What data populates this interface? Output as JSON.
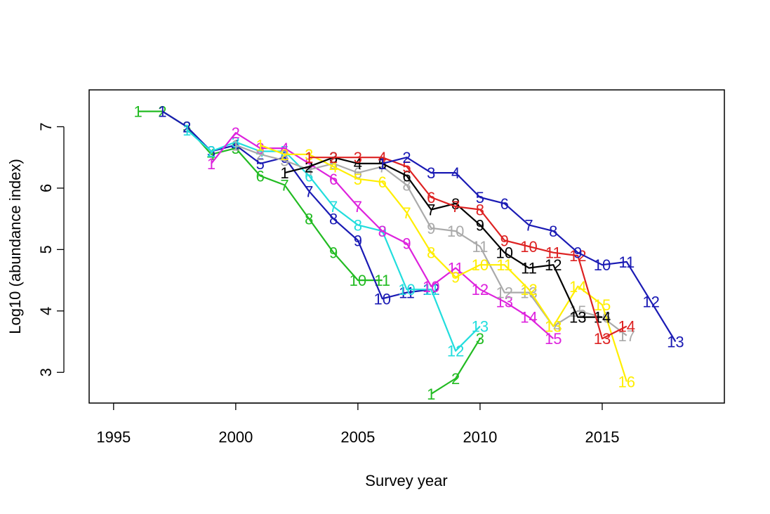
{
  "chart_data": {
    "type": "line",
    "title": "",
    "xlabel": "Survey year",
    "ylabel": "Log10 (abundance index)",
    "xlim": [
      1994,
      2020
    ],
    "ylim": [
      2.5,
      7.6
    ],
    "xticks": [
      1995,
      2000,
      2005,
      2010,
      2015
    ],
    "yticks": [
      3,
      4,
      5,
      6,
      7
    ],
    "grid": false,
    "legend": "none",
    "point_labels": "each point is drawn as its series' sequential number",
    "series": [
      {
        "color": "#22bb22",
        "points": [
          [
            1996,
            7.25
          ],
          [
            1997,
            7.25
          ],
          [
            1998,
            7.0
          ],
          [
            1999,
            6.55
          ],
          [
            2000,
            6.65
          ],
          [
            2001,
            6.2
          ],
          [
            2002,
            6.05
          ],
          [
            2003,
            5.5
          ],
          [
            2004,
            4.95
          ],
          [
            2005,
            4.5
          ],
          [
            2006,
            4.5
          ]
        ]
      },
      {
        "color": "#1a1ab4",
        "points": [
          [
            1997,
            7.25
          ],
          [
            1998,
            7.0
          ],
          [
            1999,
            6.6
          ],
          [
            2000,
            6.7
          ],
          [
            2001,
            6.4
          ],
          [
            2002,
            6.5
          ],
          [
            2003,
            5.95
          ],
          [
            2004,
            5.5
          ],
          [
            2005,
            5.15
          ],
          [
            2006,
            4.2
          ],
          [
            2007,
            4.3
          ],
          [
            2008,
            4.35
          ]
        ]
      },
      {
        "color": "#22dddd",
        "points": [
          [
            1998,
            6.95
          ],
          [
            1999,
            6.6
          ],
          [
            2000,
            6.75
          ],
          [
            2001,
            6.6
          ],
          [
            2002,
            6.6
          ],
          [
            2003,
            6.2
          ],
          [
            2004,
            5.7
          ],
          [
            2005,
            5.4
          ],
          [
            2006,
            5.3
          ],
          [
            2007,
            4.35
          ],
          [
            2008,
            4.35
          ],
          [
            2009,
            3.35
          ],
          [
            2010,
            3.75
          ]
        ]
      },
      {
        "color": "#dd22dd",
        "points": [
          [
            1999,
            6.4
          ],
          [
            2000,
            6.9
          ],
          [
            2001,
            6.65
          ],
          [
            2002,
            6.65
          ],
          [
            2003,
            6.4
          ],
          [
            2004,
            6.15
          ],
          [
            2005,
            5.7
          ],
          [
            2006,
            5.3
          ],
          [
            2007,
            5.1
          ],
          [
            2008,
            4.4
          ],
          [
            2009,
            4.7
          ],
          [
            2010,
            4.35
          ],
          [
            2011,
            4.15
          ],
          [
            2012,
            3.9
          ],
          [
            2013,
            3.55
          ]
        ]
      },
      {
        "color": "#aaaaaa",
        "points": [
          [
            2000,
            6.7
          ],
          [
            2001,
            6.55
          ],
          [
            2002,
            6.45
          ],
          [
            2003,
            6.3
          ],
          [
            2004,
            6.4
          ],
          [
            2005,
            6.25
          ],
          [
            2006,
            6.35
          ],
          [
            2007,
            6.05
          ],
          [
            2008,
            5.35
          ],
          [
            2009,
            5.3
          ],
          [
            2010,
            5.05
          ],
          [
            2011,
            4.3
          ],
          [
            2012,
            4.3
          ],
          [
            2013,
            3.75
          ],
          [
            2014,
            4.0
          ],
          [
            2015,
            3.9
          ],
          [
            2016,
            3.6
          ]
        ]
      },
      {
        "color": "#ffee00",
        "points": [
          [
            2001,
            6.7
          ],
          [
            2002,
            6.55
          ],
          [
            2003,
            6.55
          ],
          [
            2004,
            6.35
          ],
          [
            2005,
            6.15
          ],
          [
            2006,
            6.1
          ],
          [
            2007,
            5.6
          ],
          [
            2008,
            4.95
          ],
          [
            2009,
            4.55
          ],
          [
            2010,
            4.75
          ],
          [
            2011,
            4.75
          ],
          [
            2012,
            4.35
          ],
          [
            2013,
            3.75
          ],
          [
            2014,
            4.4
          ],
          [
            2015,
            4.1
          ],
          [
            2016,
            2.85
          ]
        ]
      },
      {
        "color": "#000000",
        "points": [
          [
            2002,
            6.25
          ],
          [
            2003,
            6.35
          ],
          [
            2004,
            6.5
          ],
          [
            2005,
            6.4
          ],
          [
            2006,
            6.4
          ],
          [
            2007,
            6.2
          ],
          [
            2008,
            5.65
          ],
          [
            2009,
            5.75
          ],
          [
            2010,
            5.4
          ],
          [
            2011,
            4.95
          ],
          [
            2012,
            4.7
          ],
          [
            2013,
            4.75
          ],
          [
            2014,
            3.9
          ],
          [
            2015,
            3.9
          ]
        ]
      },
      {
        "color": "#dd2222",
        "points": [
          [
            2003,
            6.5
          ],
          [
            2004,
            6.5
          ],
          [
            2005,
            6.5
          ],
          [
            2006,
            6.5
          ],
          [
            2007,
            6.35
          ],
          [
            2008,
            5.85
          ],
          [
            2009,
            5.7
          ],
          [
            2010,
            5.65
          ],
          [
            2011,
            5.15
          ],
          [
            2012,
            5.05
          ],
          [
            2013,
            4.95
          ],
          [
            2014,
            4.9
          ],
          [
            2015,
            3.55
          ],
          [
            2016,
            3.75
          ]
        ]
      },
      {
        "color": "#1a1ab4",
        "points": [
          [
            2006,
            6.4
          ],
          [
            2007,
            6.5
          ],
          [
            2008,
            6.25
          ],
          [
            2009,
            6.25
          ],
          [
            2010,
            5.85
          ],
          [
            2011,
            5.75
          ],
          [
            2012,
            5.4
          ],
          [
            2013,
            5.3
          ],
          [
            2014,
            4.95
          ],
          [
            2015,
            4.75
          ],
          [
            2016,
            4.8
          ],
          [
            2017,
            4.15
          ],
          [
            2018,
            3.5
          ]
        ]
      },
      {
        "color": "#22bb22",
        "points": [
          [
            2008,
            2.65
          ],
          [
            2009,
            2.9
          ],
          [
            2010,
            3.55
          ]
        ]
      }
    ]
  }
}
